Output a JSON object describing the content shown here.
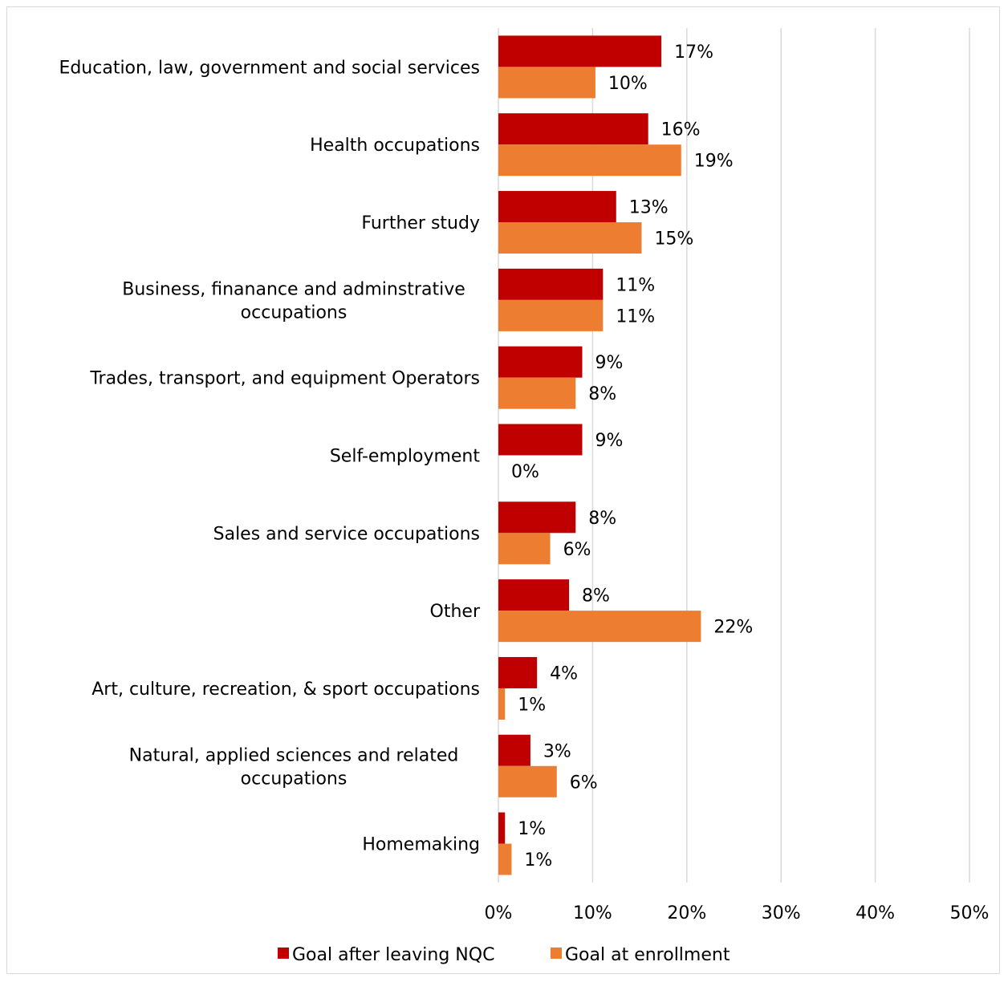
{
  "chart_data": {
    "type": "bar",
    "orientation": "horizontal",
    "title": "",
    "xlabel": "",
    "ylabel": "",
    "categories": [
      [
        "Education, law, government and social services"
      ],
      [
        "Health occupations"
      ],
      [
        "Further study"
      ],
      [
        "Business, finanance and adminstrative",
        "occupations"
      ],
      [
        "Trades, transport, and equipment Operators"
      ],
      [
        "Self-employment"
      ],
      [
        "Sales and service occupations"
      ],
      [
        "Other"
      ],
      [
        "Art, culture, recreation, & sport occupations"
      ],
      [
        "Natural, applied sciences and related",
        "occupations"
      ],
      [
        "Homemaking"
      ]
    ],
    "series": [
      {
        "name": "Goal after leaving NQC",
        "color": "#C00000",
        "values": [
          17.3,
          15.9,
          12.5,
          11.1,
          8.9,
          8.9,
          8.2,
          7.5,
          4.1,
          3.4,
          0.7
        ],
        "labels": [
          "17%",
          "16%",
          "13%",
          "11%",
          "9%",
          "9%",
          "8%",
          "8%",
          "4%",
          "3%",
          "1%"
        ]
      },
      {
        "name": "Goal at enrollment",
        "color": "#ED7D31",
        "values": [
          10.3,
          19.4,
          15.2,
          11.1,
          8.2,
          0.0,
          5.5,
          21.5,
          0.7,
          6.2,
          1.4
        ],
        "labels": [
          "10%",
          "19%",
          "15%",
          "11%",
          "8%",
          "0%",
          "6%",
          "22%",
          "1%",
          "6%",
          "1%"
        ]
      }
    ],
    "xlim": [
      0,
      50
    ],
    "xticks": [
      "0%",
      "10%",
      "20%",
      "30%",
      "40%",
      "50%"
    ],
    "grid": "vertical",
    "legend": "bottom"
  }
}
